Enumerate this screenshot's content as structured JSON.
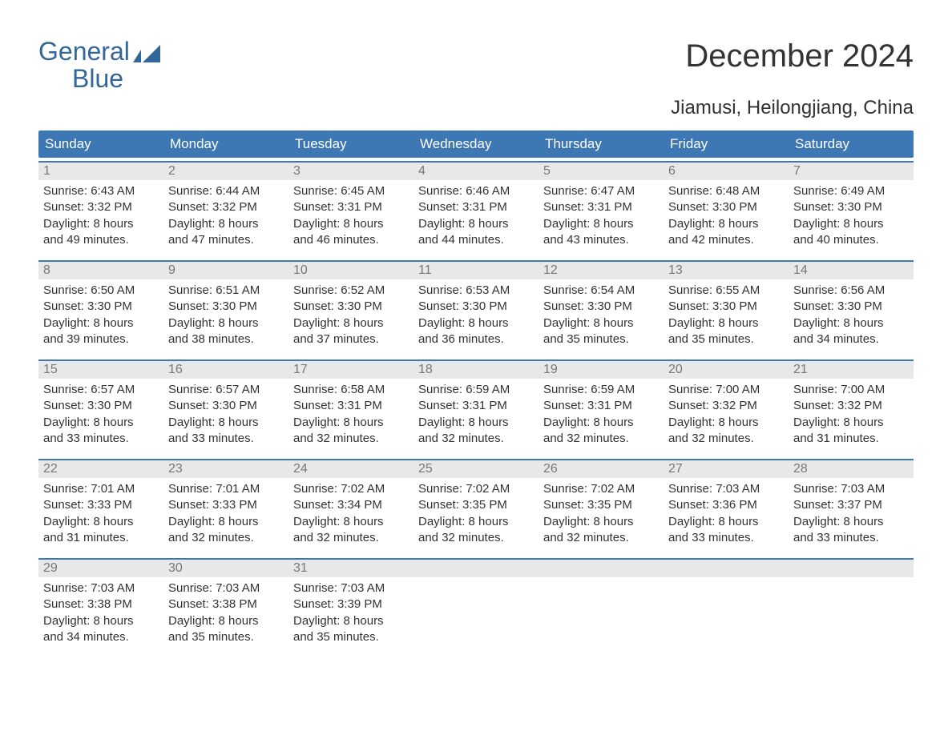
{
  "brand": {
    "word1": "General",
    "word2": "Blue",
    "color": "#336699"
  },
  "title": "December 2024",
  "subtitle": "Jiamusi, Heilongjiang, China",
  "colors": {
    "header_bg": "#3d78b4",
    "header_text": "#ffffff",
    "band_bg": "#e8e8e8",
    "band_text": "#777777",
    "body_text": "#333333",
    "week_border": "#3d78b4",
    "page_bg": "#ffffff"
  },
  "fonts": {
    "title_size": 40,
    "subtitle_size": 24,
    "header_size": 17,
    "daynum_size": 16,
    "info_size": 15,
    "family": "Arial"
  },
  "day_names": [
    "Sunday",
    "Monday",
    "Tuesday",
    "Wednesday",
    "Thursday",
    "Friday",
    "Saturday"
  ],
  "weeks": [
    [
      {
        "num": "1",
        "sunrise": "Sunrise: 6:43 AM",
        "sunset": "Sunset: 3:32 PM",
        "day1": "Daylight: 8 hours",
        "day2": "and 49 minutes."
      },
      {
        "num": "2",
        "sunrise": "Sunrise: 6:44 AM",
        "sunset": "Sunset: 3:32 PM",
        "day1": "Daylight: 8 hours",
        "day2": "and 47 minutes."
      },
      {
        "num": "3",
        "sunrise": "Sunrise: 6:45 AM",
        "sunset": "Sunset: 3:31 PM",
        "day1": "Daylight: 8 hours",
        "day2": "and 46 minutes."
      },
      {
        "num": "4",
        "sunrise": "Sunrise: 6:46 AM",
        "sunset": "Sunset: 3:31 PM",
        "day1": "Daylight: 8 hours",
        "day2": "and 44 minutes."
      },
      {
        "num": "5",
        "sunrise": "Sunrise: 6:47 AM",
        "sunset": "Sunset: 3:31 PM",
        "day1": "Daylight: 8 hours",
        "day2": "and 43 minutes."
      },
      {
        "num": "6",
        "sunrise": "Sunrise: 6:48 AM",
        "sunset": "Sunset: 3:30 PM",
        "day1": "Daylight: 8 hours",
        "day2": "and 42 minutes."
      },
      {
        "num": "7",
        "sunrise": "Sunrise: 6:49 AM",
        "sunset": "Sunset: 3:30 PM",
        "day1": "Daylight: 8 hours",
        "day2": "and 40 minutes."
      }
    ],
    [
      {
        "num": "8",
        "sunrise": "Sunrise: 6:50 AM",
        "sunset": "Sunset: 3:30 PM",
        "day1": "Daylight: 8 hours",
        "day2": "and 39 minutes."
      },
      {
        "num": "9",
        "sunrise": "Sunrise: 6:51 AM",
        "sunset": "Sunset: 3:30 PM",
        "day1": "Daylight: 8 hours",
        "day2": "and 38 minutes."
      },
      {
        "num": "10",
        "sunrise": "Sunrise: 6:52 AM",
        "sunset": "Sunset: 3:30 PM",
        "day1": "Daylight: 8 hours",
        "day2": "and 37 minutes."
      },
      {
        "num": "11",
        "sunrise": "Sunrise: 6:53 AM",
        "sunset": "Sunset: 3:30 PM",
        "day1": "Daylight: 8 hours",
        "day2": "and 36 minutes."
      },
      {
        "num": "12",
        "sunrise": "Sunrise: 6:54 AM",
        "sunset": "Sunset: 3:30 PM",
        "day1": "Daylight: 8 hours",
        "day2": "and 35 minutes."
      },
      {
        "num": "13",
        "sunrise": "Sunrise: 6:55 AM",
        "sunset": "Sunset: 3:30 PM",
        "day1": "Daylight: 8 hours",
        "day2": "and 35 minutes."
      },
      {
        "num": "14",
        "sunrise": "Sunrise: 6:56 AM",
        "sunset": "Sunset: 3:30 PM",
        "day1": "Daylight: 8 hours",
        "day2": "and 34 minutes."
      }
    ],
    [
      {
        "num": "15",
        "sunrise": "Sunrise: 6:57 AM",
        "sunset": "Sunset: 3:30 PM",
        "day1": "Daylight: 8 hours",
        "day2": "and 33 minutes."
      },
      {
        "num": "16",
        "sunrise": "Sunrise: 6:57 AM",
        "sunset": "Sunset: 3:30 PM",
        "day1": "Daylight: 8 hours",
        "day2": "and 33 minutes."
      },
      {
        "num": "17",
        "sunrise": "Sunrise: 6:58 AM",
        "sunset": "Sunset: 3:31 PM",
        "day1": "Daylight: 8 hours",
        "day2": "and 32 minutes."
      },
      {
        "num": "18",
        "sunrise": "Sunrise: 6:59 AM",
        "sunset": "Sunset: 3:31 PM",
        "day1": "Daylight: 8 hours",
        "day2": "and 32 minutes."
      },
      {
        "num": "19",
        "sunrise": "Sunrise: 6:59 AM",
        "sunset": "Sunset: 3:31 PM",
        "day1": "Daylight: 8 hours",
        "day2": "and 32 minutes."
      },
      {
        "num": "20",
        "sunrise": "Sunrise: 7:00 AM",
        "sunset": "Sunset: 3:32 PM",
        "day1": "Daylight: 8 hours",
        "day2": "and 32 minutes."
      },
      {
        "num": "21",
        "sunrise": "Sunrise: 7:00 AM",
        "sunset": "Sunset: 3:32 PM",
        "day1": "Daylight: 8 hours",
        "day2": "and 31 minutes."
      }
    ],
    [
      {
        "num": "22",
        "sunrise": "Sunrise: 7:01 AM",
        "sunset": "Sunset: 3:33 PM",
        "day1": "Daylight: 8 hours",
        "day2": "and 31 minutes."
      },
      {
        "num": "23",
        "sunrise": "Sunrise: 7:01 AM",
        "sunset": "Sunset: 3:33 PM",
        "day1": "Daylight: 8 hours",
        "day2": "and 32 minutes."
      },
      {
        "num": "24",
        "sunrise": "Sunrise: 7:02 AM",
        "sunset": "Sunset: 3:34 PM",
        "day1": "Daylight: 8 hours",
        "day2": "and 32 minutes."
      },
      {
        "num": "25",
        "sunrise": "Sunrise: 7:02 AM",
        "sunset": "Sunset: 3:35 PM",
        "day1": "Daylight: 8 hours",
        "day2": "and 32 minutes."
      },
      {
        "num": "26",
        "sunrise": "Sunrise: 7:02 AM",
        "sunset": "Sunset: 3:35 PM",
        "day1": "Daylight: 8 hours",
        "day2": "and 32 minutes."
      },
      {
        "num": "27",
        "sunrise": "Sunrise: 7:03 AM",
        "sunset": "Sunset: 3:36 PM",
        "day1": "Daylight: 8 hours",
        "day2": "and 33 minutes."
      },
      {
        "num": "28",
        "sunrise": "Sunrise: 7:03 AM",
        "sunset": "Sunset: 3:37 PM",
        "day1": "Daylight: 8 hours",
        "day2": "and 33 minutes."
      }
    ],
    [
      {
        "num": "29",
        "sunrise": "Sunrise: 7:03 AM",
        "sunset": "Sunset: 3:38 PM",
        "day1": "Daylight: 8 hours",
        "day2": "and 34 minutes."
      },
      {
        "num": "30",
        "sunrise": "Sunrise: 7:03 AM",
        "sunset": "Sunset: 3:38 PM",
        "day1": "Daylight: 8 hours",
        "day2": "and 35 minutes."
      },
      {
        "num": "31",
        "sunrise": "Sunrise: 7:03 AM",
        "sunset": "Sunset: 3:39 PM",
        "day1": "Daylight: 8 hours",
        "day2": "and 35 minutes."
      },
      {
        "num": "",
        "sunrise": "",
        "sunset": "",
        "day1": "",
        "day2": ""
      },
      {
        "num": "",
        "sunrise": "",
        "sunset": "",
        "day1": "",
        "day2": ""
      },
      {
        "num": "",
        "sunrise": "",
        "sunset": "",
        "day1": "",
        "day2": ""
      },
      {
        "num": "",
        "sunrise": "",
        "sunset": "",
        "day1": "",
        "day2": ""
      }
    ]
  ]
}
